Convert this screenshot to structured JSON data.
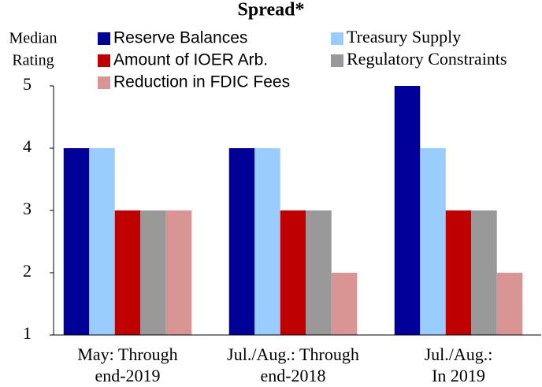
{
  "chart_data": {
    "type": "bar",
    "title": "Spread*",
    "ylabel": [
      "Median",
      "Rating"
    ],
    "categories": [
      [
        "May: Through",
        "end-2019"
      ],
      [
        "Jul./Aug.: Through",
        "end-2018"
      ],
      [
        "Jul./Aug.:",
        "In 2019"
      ]
    ],
    "series": [
      {
        "name": "Reserve Balances",
        "color": "#000099",
        "values": [
          4,
          4,
          5
        ]
      },
      {
        "name": "Treasury Supply",
        "color": "#99ccff",
        "values": [
          4,
          4,
          4
        ]
      },
      {
        "name": "Amount of IOER Arb.",
        "color": "#c00000",
        "values": [
          3,
          3,
          3
        ]
      },
      {
        "name": "Regulatory Constraints",
        "color": "#999999",
        "values": [
          3,
          3,
          3
        ]
      },
      {
        "name": "Reduction in FDIC Fees",
        "color": "#d99594",
        "values": [
          3,
          2,
          2
        ]
      }
    ],
    "ylim": [
      1,
      5
    ],
    "yticks": [
      1,
      2,
      3,
      4,
      5
    ],
    "grid": false
  }
}
